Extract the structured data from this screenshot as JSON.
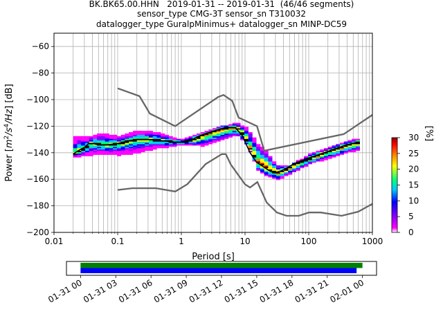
{
  "chart_data": [
    {
      "type": "heatmap",
      "title": {
        "line1": "BK.BK65.00.HHN   2019-01-31 -- 2019-01-31  (46/46 segments)",
        "line2": "sensor_type CMG-3T sensor_sn T310032",
        "line3": "datalogger_type GuralpMinimus+ datalogger_sn MINP-DC59"
      },
      "xlabel": "Period [s]",
      "ylabel_parts": {
        "a": "Power [",
        "b": "m",
        "c": "2",
        "d": "/s",
        "e": "4",
        "f": "/Hz",
        "g": "] [dB]"
      },
      "x_scale": "log",
      "xlim": [
        0.01,
        1000
      ],
      "ylim": [
        -200,
        -50
      ],
      "grid": true,
      "x_ticks": [
        {
          "value": 0.01,
          "label": "0.01"
        },
        {
          "value": 0.1,
          "label": "0.1"
        },
        {
          "value": 1,
          "label": "1"
        },
        {
          "value": 10,
          "label": "10"
        },
        {
          "value": 100,
          "label": "100"
        },
        {
          "value": 1000,
          "label": "1000"
        }
      ],
      "y_ticks": [
        {
          "value": -60,
          "label": "−60"
        },
        {
          "value": -80,
          "label": "−80"
        },
        {
          "value": -100,
          "label": "−100"
        },
        {
          "value": -120,
          "label": "−120"
        },
        {
          "value": -140,
          "label": "−140"
        },
        {
          "value": -160,
          "label": "−160"
        },
        {
          "value": -180,
          "label": "−180"
        },
        {
          "value": -200,
          "label": "−200"
        }
      ],
      "colorbar": {
        "label": "[%]",
        "range": [
          0,
          30
        ],
        "ticks": [
          {
            "value": 0,
            "label": "0"
          },
          {
            "value": 5,
            "label": "5"
          },
          {
            "value": 10,
            "label": "10"
          },
          {
            "value": 15,
            "label": "15"
          },
          {
            "value": 20,
            "label": "20"
          },
          {
            "value": 25,
            "label": "25"
          },
          {
            "value": 30,
            "label": "30"
          }
        ],
        "colors": [
          "#ffffff",
          "#ff00ff",
          "#7f00ff",
          "#0000ff",
          "#00c8ff",
          "#00ff80",
          "#ffff00",
          "#ff8000",
          "#ff0000",
          "#8b0000"
        ]
      },
      "psd_median": [
        [
          0.02,
          -141
        ],
        [
          0.025,
          -138
        ],
        [
          0.03,
          -136
        ],
        [
          0.035,
          -133
        ],
        [
          0.04,
          -133
        ],
        [
          0.05,
          -134
        ],
        [
          0.07,
          -134
        ],
        [
          0.1,
          -133
        ],
        [
          0.15,
          -131
        ],
        [
          0.2,
          -130
        ],
        [
          0.3,
          -130
        ],
        [
          0.5,
          -131
        ],
        [
          0.8,
          -132
        ],
        [
          1.0,
          -132
        ],
        [
          1.5,
          -130
        ],
        [
          2.0,
          -127
        ],
        [
          3.0,
          -124
        ],
        [
          5.0,
          -121
        ],
        [
          7.0,
          -121
        ],
        [
          9.0,
          -127
        ],
        [
          12.0,
          -140
        ],
        [
          15.0,
          -147
        ],
        [
          20.0,
          -151
        ],
        [
          25.0,
          -154
        ],
        [
          30.0,
          -155
        ],
        [
          40.0,
          -153
        ],
        [
          60.0,
          -148
        ],
        [
          100.0,
          -144
        ],
        [
          200.0,
          -139
        ],
        [
          300.0,
          -136
        ],
        [
          400.0,
          -134
        ],
        [
          600.0,
          -132
        ]
      ],
      "nhnm": [
        [
          0.1,
          -91.5
        ],
        [
          0.22,
          -97.4
        ],
        [
          0.32,
          -110.5
        ],
        [
          0.8,
          -120
        ],
        [
          3.8,
          -98
        ],
        [
          4.6,
          -96.5
        ],
        [
          6.3,
          -101
        ],
        [
          7.9,
          -113.5
        ],
        [
          15.4,
          -120
        ],
        [
          20,
          -138.5
        ],
        [
          354.8,
          -126
        ],
        [
          1000,
          -111.5
        ]
      ],
      "nlnm": [
        [
          0.1,
          -168
        ],
        [
          0.17,
          -166.7
        ],
        [
          0.4,
          -166.7
        ],
        [
          0.8,
          -169.2
        ],
        [
          1.24,
          -163.7
        ],
        [
          2.4,
          -148.6
        ],
        [
          4.3,
          -141.1
        ],
        [
          5.0,
          -141.1
        ],
        [
          6.0,
          -149
        ],
        [
          10.0,
          -163.8
        ],
        [
          12.0,
          -166.2
        ],
        [
          15.6,
          -162.1
        ],
        [
          21.9,
          -177.5
        ],
        [
          31.6,
          -185
        ],
        [
          45,
          -187.5
        ],
        [
          70,
          -187.5
        ],
        [
          101,
          -185
        ],
        [
          154,
          -185
        ],
        [
          328,
          -187.5
        ],
        [
          600,
          -184.4
        ],
        [
          1000,
          -178.5
        ]
      ],
      "upper_pct": [
        [
          0.03,
          -129
        ],
        [
          0.05,
          -126
        ],
        [
          0.1,
          -128
        ],
        [
          0.2,
          -124
        ],
        [
          0.4,
          -125
        ],
        [
          0.7,
          -129
        ],
        [
          1.0,
          -130
        ],
        [
          2.0,
          -125
        ],
        [
          4.0,
          -120
        ],
        [
          7.0,
          -118
        ],
        [
          10.0,
          -122
        ],
        [
          15.0,
          -135
        ],
        [
          20.0,
          -140
        ],
        [
          30.0,
          -150
        ],
        [
          50.0,
          -150
        ],
        [
          100.0,
          -141
        ],
        [
          300.0,
          -133
        ],
        [
          600.0,
          -129
        ]
      ],
      "lower_pct": [
        [
          0.02,
          -143
        ],
        [
          0.05,
          -140
        ],
        [
          0.1,
          -141
        ],
        [
          0.2,
          -139
        ],
        [
          0.4,
          -136
        ],
        [
          0.7,
          -135
        ],
        [
          1.0,
          -134
        ],
        [
          2.0,
          -134
        ],
        [
          4.0,
          -130
        ],
        [
          7.0,
          -126
        ],
        [
          10.0,
          -134
        ],
        [
          15.0,
          -153
        ],
        [
          20.0,
          -157
        ],
        [
          30.0,
          -160
        ],
        [
          50.0,
          -155
        ],
        [
          100.0,
          -148
        ],
        [
          300.0,
          -141
        ],
        [
          600.0,
          -137
        ]
      ]
    },
    {
      "type": "timeline",
      "x_ticks": [
        {
          "value": 0,
          "label": "01-31 00"
        },
        {
          "value": 3,
          "label": "01-31 03"
        },
        {
          "value": 6,
          "label": "01-31 06"
        },
        {
          "value": 9,
          "label": "01-31 09"
        },
        {
          "value": 12,
          "label": "01-31 12"
        },
        {
          "value": 15,
          "label": "01-31 15"
        },
        {
          "value": 18,
          "label": "01-31 18"
        },
        {
          "value": 21,
          "label": "01-31 21"
        },
        {
          "value": 24,
          "label": "02-01 00"
        }
      ],
      "xlim_hours": [
        -1.2,
        25.2
      ],
      "bars": [
        {
          "start_hour": 0,
          "end_hour": 24.0,
          "color": "#008000"
        },
        {
          "start_hour": 0,
          "end_hour": 23.5,
          "color": "#0000ff"
        }
      ]
    }
  ]
}
